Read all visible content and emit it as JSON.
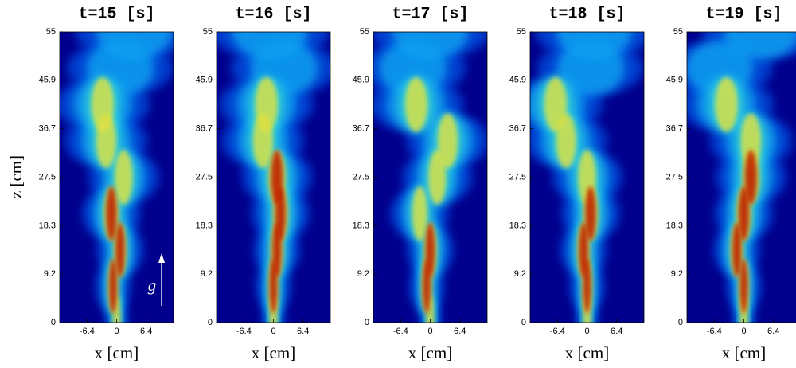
{
  "chart_data": [
    {
      "type": "image",
      "title": "t=15 [s]",
      "xlabel": "x [cm]",
      "ylabel": "z [cm]",
      "annotation": "g",
      "xlim": [
        -12.3,
        12.3
      ],
      "ylim": [
        0,
        55
      ],
      "xticks": [
        -6.4,
        0,
        6.4
      ],
      "yticks": [
        0,
        9.2,
        18.3,
        27.5,
        36.7,
        45.9,
        55
      ]
    },
    {
      "type": "image",
      "title": "t=16 [s]",
      "xlabel": "x [cm]",
      "xlim": [
        -12.3,
        12.3
      ],
      "ylim": [
        0,
        55
      ],
      "xticks": [
        -6.4,
        0,
        6.4
      ],
      "yticks": [
        0,
        9.2,
        18.3,
        27.5,
        36.7,
        45.9,
        55
      ]
    },
    {
      "type": "image",
      "title": "t=17 [s]",
      "xlabel": "x [cm]",
      "xlim": [
        -12.3,
        12.3
      ],
      "ylim": [
        0,
        55
      ],
      "xticks": [
        -6.4,
        0,
        6.4
      ],
      "yticks": [
        0,
        9.2,
        18.3,
        27.5,
        36.7,
        45.9,
        55
      ]
    },
    {
      "type": "image",
      "title": "t=18 [s]",
      "xlabel": "x [cm]",
      "xlim": [
        -12.3,
        12.3
      ],
      "ylim": [
        0,
        55
      ],
      "xticks": [
        -6.4,
        0,
        6.4
      ],
      "yticks": [
        0,
        9.2,
        18.3,
        27.5,
        36.7,
        45.9,
        55
      ]
    },
    {
      "type": "image",
      "title": "t=19 [s]",
      "xlabel": "x [cm]",
      "xlim": [
        -12.3,
        12.3
      ],
      "ylim": [
        0,
        55
      ],
      "xticks": [
        -6.4,
        0,
        6.4
      ],
      "yticks": [
        0,
        9.2,
        18.3,
        27.5,
        36.7,
        45.9,
        55
      ]
    }
  ]
}
